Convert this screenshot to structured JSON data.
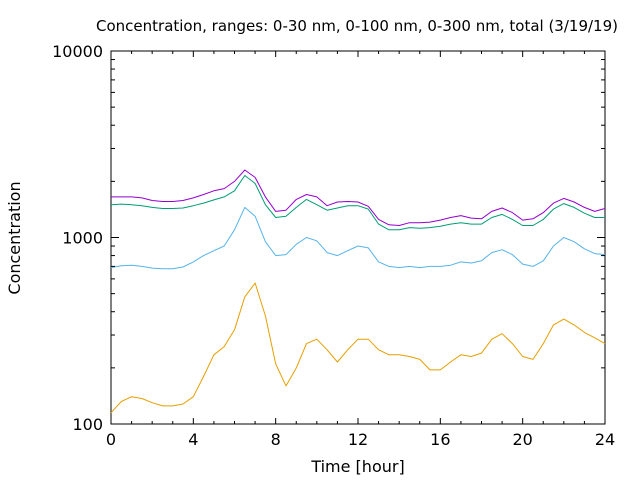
{
  "chart_data": {
    "type": "line",
    "title": "Concentration, ranges: 0-30 nm, 0-100 nm, 0-300 nm, total (3/19/19)",
    "xlabel": "Time [hour]",
    "ylabel": "Concentration",
    "xlim": [
      0,
      24
    ],
    "ylim": [
      100,
      10000
    ],
    "yscale": "log",
    "grid": false,
    "x_ticks": [
      "0",
      "4",
      "8",
      "12",
      "16",
      "20",
      "24"
    ],
    "y_ticks": [
      "100",
      "1000",
      "10000"
    ],
    "x": [
      0,
      0.5,
      1,
      1.5,
      2,
      2.5,
      3,
      3.5,
      4,
      4.5,
      5,
      5.5,
      6,
      6.5,
      7,
      7.5,
      8,
      8.5,
      9,
      9.5,
      10,
      10.5,
      11,
      11.5,
      12,
      12.5,
      13,
      13.5,
      14,
      14.5,
      15,
      15.5,
      16,
      16.5,
      17,
      17.5,
      18,
      18.5,
      19,
      19.5,
      20,
      20.5,
      21,
      21.5,
      22,
      22.5,
      23,
      23.5,
      24
    ],
    "series": [
      {
        "color": "#e69f00",
        "values": [
          115,
          132,
          140,
          137,
          130,
          125,
          125,
          128,
          140,
          180,
          235,
          260,
          320,
          480,
          570,
          380,
          210,
          160,
          200,
          270,
          285,
          250,
          215,
          250,
          285,
          285,
          250,
          235,
          235,
          230,
          222,
          195,
          195,
          215,
          235,
          230,
          240,
          285,
          305,
          270,
          230,
          222,
          270,
          340,
          365,
          340,
          310,
          290,
          270
        ]
      },
      {
        "color": "#56b4e9",
        "values": [
          690,
          705,
          710,
          700,
          685,
          680,
          680,
          695,
          740,
          800,
          850,
          900,
          1100,
          1450,
          1300,
          950,
          800,
          810,
          920,
          1000,
          960,
          830,
          800,
          850,
          900,
          880,
          740,
          700,
          690,
          700,
          690,
          700,
          700,
          710,
          740,
          730,
          750,
          830,
          860,
          810,
          720,
          700,
          750,
          900,
          1000,
          950,
          870,
          820,
          810
        ]
      },
      {
        "color": "#009e73",
        "values": [
          1500,
          1510,
          1500,
          1480,
          1450,
          1430,
          1430,
          1440,
          1480,
          1530,
          1590,
          1650,
          1780,
          2150,
          1950,
          1500,
          1280,
          1300,
          1450,
          1600,
          1500,
          1400,
          1440,
          1480,
          1480,
          1420,
          1180,
          1100,
          1100,
          1130,
          1120,
          1130,
          1150,
          1180,
          1200,
          1180,
          1180,
          1280,
          1330,
          1250,
          1160,
          1160,
          1250,
          1420,
          1520,
          1450,
          1350,
          1280,
          1280
        ]
      },
      {
        "color": "#9400d3",
        "values": [
          1650,
          1650,
          1650,
          1630,
          1580,
          1560,
          1560,
          1580,
          1630,
          1700,
          1780,
          1830,
          2000,
          2300,
          2100,
          1650,
          1380,
          1400,
          1600,
          1700,
          1650,
          1480,
          1550,
          1560,
          1550,
          1470,
          1250,
          1170,
          1160,
          1200,
          1200,
          1210,
          1240,
          1280,
          1310,
          1270,
          1260,
          1380,
          1440,
          1360,
          1240,
          1260,
          1360,
          1530,
          1620,
          1550,
          1450,
          1380,
          1430
        ]
      }
    ]
  }
}
